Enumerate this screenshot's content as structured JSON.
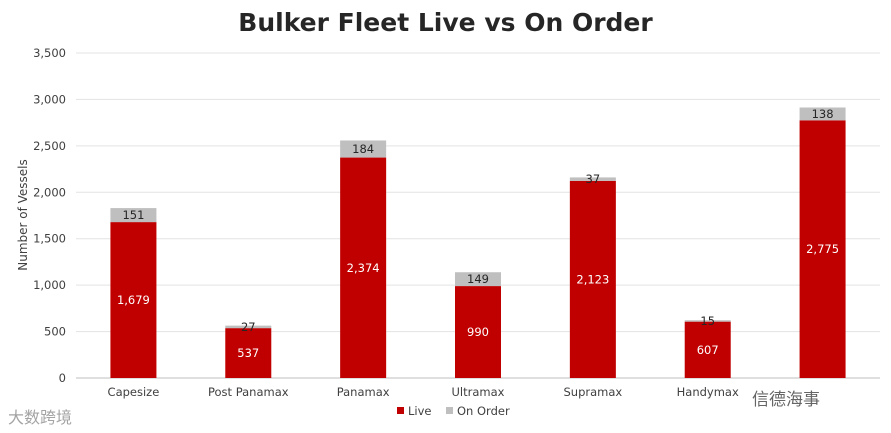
{
  "chart_data": {
    "type": "bar",
    "stacked": true,
    "title": "Bulker Fleet Live vs On Order",
    "xlabel": "",
    "ylabel": "Number of Vessels",
    "ylim": [
      0,
      3500
    ],
    "yticks": [
      "0",
      "500",
      "1,000",
      "1,500",
      "2,000",
      "2,500",
      "3,000",
      "3,500"
    ],
    "grid": true,
    "legend_position": "bottom",
    "categories": [
      "Capesize",
      "Post Panamax",
      "Panamax",
      "Ultramax",
      "Supramax",
      "Handymax",
      ""
    ],
    "series": [
      {
        "name": "Live",
        "color": "#c00000",
        "values": [
          1679,
          537,
          2374,
          990,
          2123,
          607,
          2775
        ],
        "labels": [
          "1,679",
          "537",
          "2,374",
          "990",
          "2,123",
          "607",
          "2,775"
        ]
      },
      {
        "name": "On Order",
        "color": "#bfbfbf",
        "values": [
          151,
          27,
          184,
          149,
          37,
          15,
          138
        ],
        "labels": [
          "151",
          "27",
          "184",
          "149",
          "37",
          "15",
          "138"
        ]
      }
    ]
  },
  "watermarks": {
    "left": "大数跨境",
    "right": "信德海事"
  }
}
